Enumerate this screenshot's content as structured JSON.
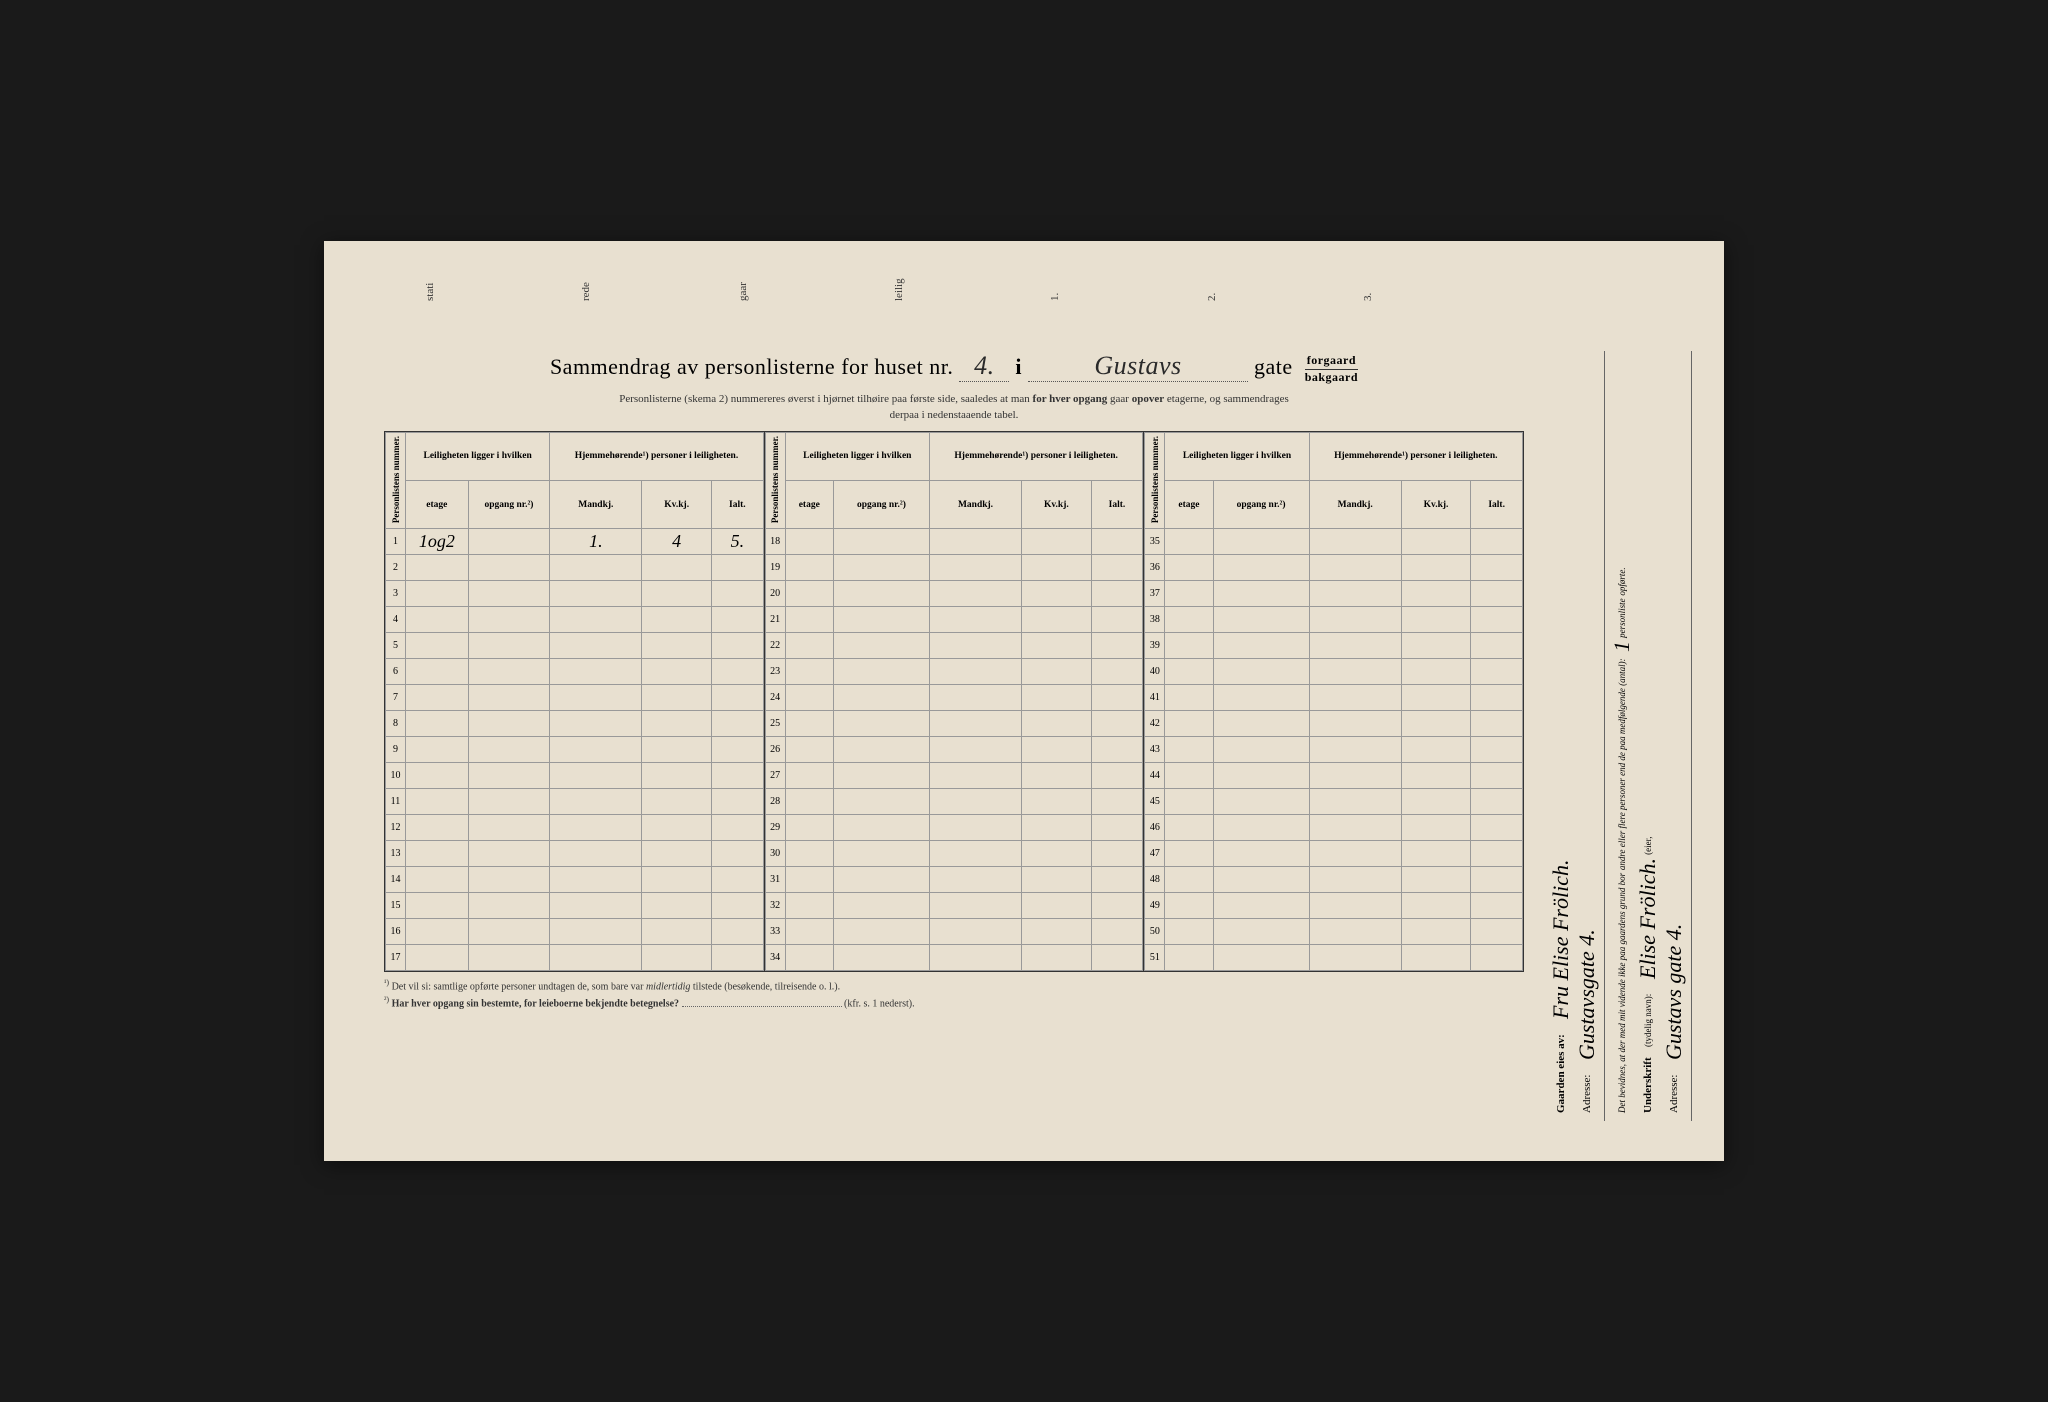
{
  "top_fragments": [
    "stati",
    "rede",
    "gaar",
    "leilig",
    "1.",
    "2.",
    "3."
  ],
  "title": {
    "prefix": "Sammendrag av personlisterne for huset nr.",
    "house_nr": "4.",
    "i": "i",
    "street": "Gustavs",
    "gate": "gate",
    "forgaard": "forgaard",
    "bakgaard": "bakgaard"
  },
  "subtitle": {
    "line1_a": "Personlisterne (skema 2) nummereres øverst i hjørnet tilhøire paa første side, saaledes at man",
    "line1_b": "for hver opgang",
    "line1_c": "gaar",
    "line1_d": "opover",
    "line1_e": "etagerne, og sammendrages",
    "line2": "derpaa i nedenstaaende tabel."
  },
  "headers": {
    "personlistens": "Personlistens nummer.",
    "leiligheten": "Leiligheten ligger i hvilken",
    "hjemmehorende": "Hjemmehørende¹) personer i leiligheten.",
    "etage": "etage",
    "opgang": "opgang nr.²)",
    "mandkj": "Mandkj.",
    "kvkj": "Kv.kj.",
    "ialt": "Ialt."
  },
  "table1_rows": [
    {
      "n": "1",
      "etage": "1og2",
      "opgang": "",
      "m": "1.",
      "k": "4",
      "i": "5."
    },
    {
      "n": "2"
    },
    {
      "n": "3"
    },
    {
      "n": "4"
    },
    {
      "n": "5"
    },
    {
      "n": "6"
    },
    {
      "n": "7"
    },
    {
      "n": "8"
    },
    {
      "n": "9"
    },
    {
      "n": "10"
    },
    {
      "n": "11"
    },
    {
      "n": "12"
    },
    {
      "n": "13"
    },
    {
      "n": "14"
    },
    {
      "n": "15"
    },
    {
      "n": "16"
    },
    {
      "n": "17"
    }
  ],
  "table2_rows": [
    {
      "n": "18"
    },
    {
      "n": "19"
    },
    {
      "n": "20"
    },
    {
      "n": "21"
    },
    {
      "n": "22"
    },
    {
      "n": "23"
    },
    {
      "n": "24"
    },
    {
      "n": "25"
    },
    {
      "n": "26"
    },
    {
      "n": "27"
    },
    {
      "n": "28"
    },
    {
      "n": "29"
    },
    {
      "n": "30"
    },
    {
      "n": "31"
    },
    {
      "n": "32"
    },
    {
      "n": "33"
    },
    {
      "n": "34"
    }
  ],
  "table3_rows": [
    {
      "n": "35"
    },
    {
      "n": "36"
    },
    {
      "n": "37"
    },
    {
      "n": "38"
    },
    {
      "n": "39"
    },
    {
      "n": "40"
    },
    {
      "n": "41"
    },
    {
      "n": "42"
    },
    {
      "n": "43"
    },
    {
      "n": "44"
    },
    {
      "n": "45"
    },
    {
      "n": "46"
    },
    {
      "n": "47"
    },
    {
      "n": "48"
    },
    {
      "n": "49"
    },
    {
      "n": "50"
    },
    {
      "n": "51"
    }
  ],
  "footnotes": {
    "f1_sup": "¹)",
    "f1_a": "Det vil si: samtlige opførte personer undtagen de, som bare var",
    "f1_b": "midlertidig",
    "f1_c": "tilstede (besøkende, tilreisende o. l.).",
    "f2_sup": "²)",
    "f2_a": "Har hver opgang sin bestemte, for leieboerne bekjendte betegnelse?",
    "f2_b": "(kfr. s. 1 nederst)."
  },
  "sidebar": {
    "owner_label": "Gaarden eies av:",
    "owner_name": "Fru Elise Frölich.",
    "owner_addr_label": "Adresse:",
    "owner_addr": "Gustavsgate 4.",
    "attest_line1": "Det bevidnes, at der med mit vidende ikke paa gaardens grund bor",
    "attest_line2": "andre eller flere personer end de paa medfølgende (antal):",
    "attest_count": "1",
    "attest_line3": "personliste",
    "attest_line3b": "opførte.",
    "sign_label": "Underskrift",
    "sign_sub": "(tydelig navn):",
    "sign_name": "Elise Frölich.",
    "sign_role": "(eier, ",
    "sign_addr_label": "Adresse:",
    "sign_addr": "Gustavs gate 4."
  },
  "colors": {
    "page_bg": "#e8e0d0",
    "text": "#2a2a2a",
    "border": "#333333",
    "cell_border": "#999999"
  }
}
